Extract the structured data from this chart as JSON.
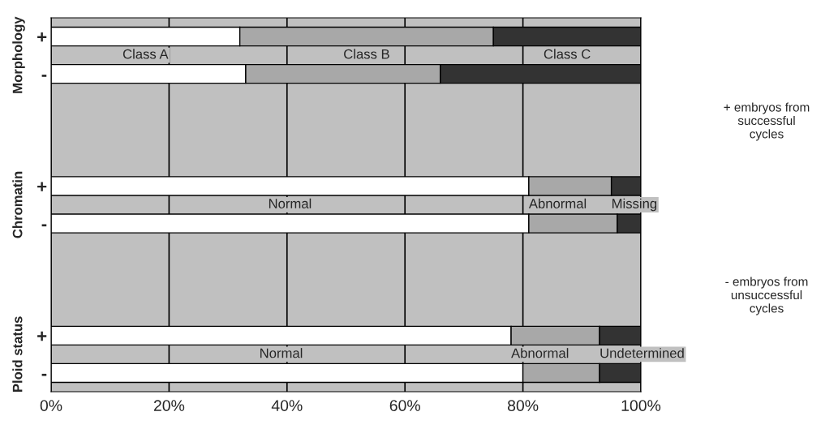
{
  "chart_data": {
    "type": "bar",
    "orientation": "horizontal",
    "stacked": true,
    "categories": [
      "+",
      "-",
      null,
      null,
      "+",
      "-",
      null,
      null,
      "+",
      "-"
    ],
    "series": [
      {
        "color": "#ffffff",
        "values": [
          32,
          33,
          null,
          null,
          81,
          81,
          null,
          null,
          78,
          80
        ]
      },
      {
        "color": "#a8a8a8",
        "values": [
          43,
          33,
          null,
          null,
          14,
          15,
          null,
          null,
          15,
          13
        ]
      },
      {
        "color": "#333333",
        "values": [
          25,
          34,
          null,
          null,
          5,
          4,
          null,
          null,
          7,
          7
        ]
      }
    ],
    "xlim": [
      0,
      100
    ],
    "xticks": [
      {
        "value": 0,
        "label": "0%"
      },
      {
        "value": 20,
        "label": "20%"
      },
      {
        "value": 40,
        "label": "40%"
      },
      {
        "value": 60,
        "label": "60%"
      },
      {
        "value": 80,
        "label": "80%"
      },
      {
        "value": 100,
        "label": "100%"
      }
    ],
    "grid": "x",
    "annotations": [
      "Morphology",
      "Chromatin",
      "Ploid status",
      "+ embryos from\nsuccessful\ncycles",
      "- embryos from\nunsuccessful\ncycles",
      "Class A",
      "Class B",
      "Class C",
      "Normal",
      "Abnormal",
      "Missing",
      "Normal",
      "Abnormal",
      "Undetermined"
    ]
  }
}
